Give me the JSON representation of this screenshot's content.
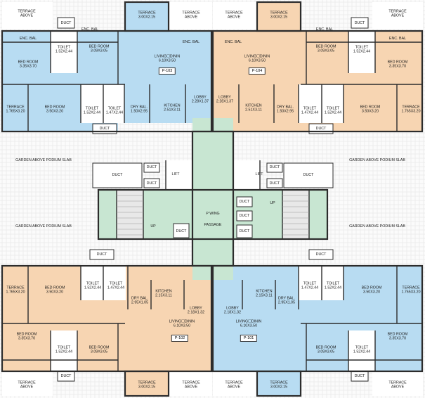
{
  "colors": {
    "blue": "#b8dcf2",
    "orange": "#f7d5b2",
    "green": "#c8e6d2",
    "wall": "#2c2c2c",
    "hatch": "#d6d6d6"
  },
  "units": {
    "p103": "P-103",
    "p104": "P-104",
    "p102": "P-102",
    "p101": "P-101"
  },
  "labels": [
    {
      "id": "terrace-tl",
      "l1": "TERRACE",
      "l2": "ABOVE"
    },
    {
      "id": "duct-tl",
      "l1": "DUCT"
    },
    {
      "id": "terrace-p103",
      "l1": "TERRACE",
      "l2": "3.00X2.15"
    },
    {
      "id": "terrace-tc1",
      "l1": "TERRACE",
      "l2": "ABOVE"
    },
    {
      "id": "terrace-tc2",
      "l1": "TERRACE",
      "l2": "ABOVE"
    },
    {
      "id": "terrace-p104",
      "l1": "TERRACE",
      "l2": "3.00X2.15"
    },
    {
      "id": "duct-tr",
      "l1": "DUCT"
    },
    {
      "id": "terrace-tr",
      "l1": "TERRACE",
      "l2": "ABOVE"
    },
    {
      "id": "encbal-1",
      "l1": "ENC. BAL"
    },
    {
      "id": "encbal-2",
      "l1": "ENC. BAL"
    },
    {
      "id": "encbal-3",
      "l1": "ENC. BAL"
    },
    {
      "id": "encbal-4",
      "l1": "ENC. BAL"
    },
    {
      "id": "encbal-5",
      "l1": "ENC. BAL"
    },
    {
      "id": "encbal-6",
      "l1": "ENC. BAL"
    },
    {
      "id": "toilet-103a",
      "l1": "TOILET",
      "l2": "1.52X2.44"
    },
    {
      "id": "bed-103a",
      "l1": "BED ROOM",
      "l2": "3.09X3.05"
    },
    {
      "id": "living-103",
      "l1": "LIVING☐DININ",
      "l2": "6.10X3.50"
    },
    {
      "id": "living-104",
      "l1": "LIVING☐DININ",
      "l2": "6.10X3.50"
    },
    {
      "id": "bed-104a",
      "l1": "BED ROOM",
      "l2": "3.09X3.05"
    },
    {
      "id": "toilet-104a",
      "l1": "TOILET",
      "l2": "1.52X2.44"
    },
    {
      "id": "bed-103b",
      "l1": "BED ROOM",
      "l2": "3.35X3.70"
    },
    {
      "id": "bed-104b",
      "l1": "BED ROOM",
      "l2": "3.35X3.70"
    },
    {
      "id": "terrace-103l",
      "l1": "TERRACE",
      "l2": "1.765X3.20"
    },
    {
      "id": "bed-103c",
      "l1": "BED ROOM",
      "l2": "3.50X3.20"
    },
    {
      "id": "toilet-103b",
      "l1": "TOILET",
      "l2": "1.52X2.44"
    },
    {
      "id": "toilet-103c",
      "l1": "TOILET",
      "l2": "1.47X2.44"
    },
    {
      "id": "drybal-103",
      "l1": "DRY BAL.",
      "l2": "1.50X2.95"
    },
    {
      "id": "kitchen-103",
      "l1": "KITCHEN",
      "l2": "2.51X3.11"
    },
    {
      "id": "lobby-103",
      "l1": "LOBBY",
      "l2": "2.28X1.37"
    },
    {
      "id": "lobby-104",
      "l1": "LOBBY",
      "l2": "2.28X1.37"
    },
    {
      "id": "kitchen-104",
      "l1": "KITCHEN",
      "l2": "2.51X3.11"
    },
    {
      "id": "drybal-104",
      "l1": "DRY BAL.",
      "l2": "1.50X2.95"
    },
    {
      "id": "toilet-104c",
      "l1": "TOILET",
      "l2": "1.47X2.44"
    },
    {
      "id": "toilet-104b",
      "l1": "TOILET",
      "l2": "1.52X2.44"
    },
    {
      "id": "bed-104c",
      "l1": "BED ROOM",
      "l2": "3.50X3.20"
    },
    {
      "id": "terrace-104r",
      "l1": "TERRACE",
      "l2": "1.765X3.20"
    },
    {
      "id": "duct-t1",
      "l1": "DUCT"
    },
    {
      "id": "duct-t2",
      "l1": "DUCT"
    },
    {
      "id": "garden-1",
      "l1": "GARDEN ABOVE PODIUM SLAB"
    },
    {
      "id": "garden-2",
      "l1": "GARDEN ABOVE PODIUM SLAB"
    },
    {
      "id": "garden-3",
      "l1": "GARDEN ABOVE PODIUM SLAB"
    },
    {
      "id": "garden-4",
      "l1": "GARDEN ABOVE PODIUM SLAB"
    },
    {
      "id": "duct-l1",
      "l1": "DUCT"
    },
    {
      "id": "duct-l2",
      "l1": "DUCT"
    },
    {
      "id": "duct-l3",
      "l1": "DUCT"
    },
    {
      "id": "duct-r1",
      "l1": "DUCT"
    },
    {
      "id": "duct-r2",
      "l1": "DUCT"
    },
    {
      "id": "duct-r3",
      "l1": "DUCT"
    },
    {
      "id": "lift-l",
      "l1": "LIFT"
    },
    {
      "id": "lift-r",
      "l1": "LIFT"
    },
    {
      "id": "up-l",
      "l1": "UP"
    },
    {
      "id": "up-r",
      "l1": "UP"
    },
    {
      "id": "wing",
      "l1": "P WING"
    },
    {
      "id": "passage",
      "l1": "PASSAGE"
    },
    {
      "id": "duct-m1",
      "l1": "DUCT"
    },
    {
      "id": "duct-m2",
      "l1": "DUCT"
    },
    {
      "id": "duct-m3",
      "l1": "DUCT"
    },
    {
      "id": "duct-m4",
      "l1": "DUCT"
    },
    {
      "id": "duct-b1",
      "l1": "DUCT"
    },
    {
      "id": "duct-b2",
      "l1": "DUCT"
    },
    {
      "id": "toilet-102c",
      "l1": "TOILET",
      "l2": "1.52X2.44"
    },
    {
      "id": "toilet-102b",
      "l1": "TOILET",
      "l2": "1.47X2.44"
    },
    {
      "id": "toilet-101c",
      "l1": "TOILET",
      "l2": "1.47X2.44"
    },
    {
      "id": "toilet-101b",
      "l1": "TOILET",
      "l2": "1.52X2.44"
    },
    {
      "id": "terrace-102l",
      "l1": "TERRACE",
      "l2": "1.765X3.20"
    },
    {
      "id": "bed-102c",
      "l1": "BED ROOM",
      "l2": "3.50X3.20"
    },
    {
      "id": "drybal-102",
      "l1": "DRY BAL.",
      "l2": "2.95X1.05"
    },
    {
      "id": "kitchen-102",
      "l1": "KITCHEN",
      "l2": "2.15X3.11"
    },
    {
      "id": "lobby-102",
      "l1": "LOBBY",
      "l2": "2.18X1.32"
    },
    {
      "id": "lobby-101",
      "l1": "LOBBY",
      "l2": "2.18X1.32"
    },
    {
      "id": "kitchen-101",
      "l1": "KITCHEN",
      "l2": "2.15X3.11"
    },
    {
      "id": "drybal-101",
      "l1": "DRY BAL.",
      "l2": "2.95X1.05"
    },
    {
      "id": "bed-101c",
      "l1": "BED ROOM",
      "l2": "3.50X3.20"
    },
    {
      "id": "terrace-101r",
      "l1": "TERRACE",
      "l2": "1.765X3.20"
    },
    {
      "id": "living-102",
      "l1": "LIVING☐DININ",
      "l2": "6.10X3.50"
    },
    {
      "id": "living-101",
      "l1": "LIVING☐DININ",
      "l2": "6.10X3.50"
    },
    {
      "id": "bed-102b",
      "l1": "BED ROOM",
      "l2": "3.35X3.70"
    },
    {
      "id": "bed-101b",
      "l1": "BED ROOM",
      "l2": "3.35X3.70"
    },
    {
      "id": "toilet-102a",
      "l1": "TOILET",
      "l2": "1.52X2.44"
    },
    {
      "id": "bed-102a",
      "l1": "BED ROOM",
      "l2": "3.09X3.05"
    },
    {
      "id": "bed-101a",
      "l1": "BED ROOM",
      "l2": "3.09X3.05"
    },
    {
      "id": "toilet-101a",
      "l1": "TOILET",
      "l2": "1.52X2.44"
    },
    {
      "id": "duct-bl",
      "l1": "DUCT"
    },
    {
      "id": "duct-br",
      "l1": "DUCT"
    },
    {
      "id": "terrace-bl",
      "l1": "TERRACE",
      "l2": "ABOVE"
    },
    {
      "id": "terrace-p102",
      "l1": "TERRACE",
      "l2": "3.00X2.15"
    },
    {
      "id": "terrace-bc1",
      "l1": "TERRACE",
      "l2": "ABOVE"
    },
    {
      "id": "terrace-bc2",
      "l1": "TERRACE",
      "l2": "ABOVE"
    },
    {
      "id": "terrace-p101",
      "l1": "TERRACE",
      "l2": "3.00X2.15"
    },
    {
      "id": "terrace-br",
      "l1": "TERRACE",
      "l2": "ABOVE"
    }
  ]
}
